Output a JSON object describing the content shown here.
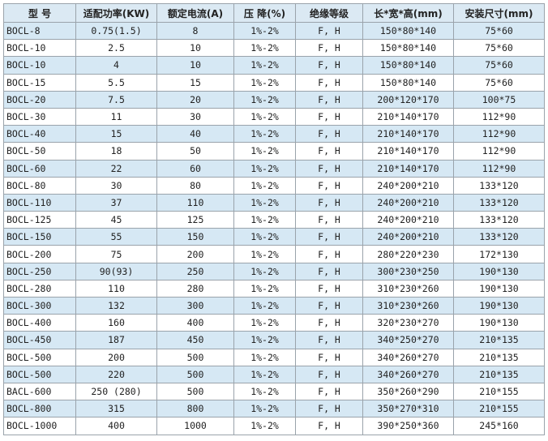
{
  "table": {
    "header": [
      "型 号",
      "适配功率(KW)",
      "额定电流(A)",
      "压 降(%)",
      "绝缘等级",
      "长*宽*高(mm)",
      "安装尺寸(mm)"
    ],
    "rows": [
      [
        "BOCL-8",
        "0.75(1.5)",
        "8",
        "1%-2%",
        "F, H",
        "150*80*140",
        "75*60"
      ],
      [
        "BOCL-10",
        "2.5",
        "10",
        "1%-2%",
        "F, H",
        "150*80*140",
        "75*60"
      ],
      [
        "BOCL-10",
        "4",
        "10",
        "1%-2%",
        "F, H",
        "150*80*140",
        "75*60"
      ],
      [
        "BOCL-15",
        "5.5",
        "15",
        "1%-2%",
        "F, H",
        "150*80*140",
        "75*60"
      ],
      [
        "BOCL-20",
        "7.5",
        "20",
        "1%-2%",
        "F, H",
        "200*120*170",
        "100*75"
      ],
      [
        "BOCL-30",
        "11",
        "30",
        "1%-2%",
        "F, H",
        "210*140*170",
        "112*90"
      ],
      [
        "BOCL-40",
        "15",
        "40",
        "1%-2%",
        "F, H",
        "210*140*170",
        "112*90"
      ],
      [
        "BOCL-50",
        "18",
        "50",
        "1%-2%",
        "F, H",
        "210*140*170",
        "112*90"
      ],
      [
        "BOCL-60",
        "22",
        "60",
        "1%-2%",
        "F, H",
        "210*140*170",
        "112*90"
      ],
      [
        "BOCL-80",
        "30",
        "80",
        "1%-2%",
        "F, H",
        "240*200*210",
        "133*120"
      ],
      [
        "BOCL-110",
        "37",
        "110",
        "1%-2%",
        "F, H",
        "240*200*210",
        "133*120"
      ],
      [
        "BOCL-125",
        "45",
        "125",
        "1%-2%",
        "F, H",
        "240*200*210",
        "133*120"
      ],
      [
        "BOCL-150",
        "55",
        "150",
        "1%-2%",
        "F, H",
        "240*200*210",
        "133*120"
      ],
      [
        "BOCL-200",
        "75",
        "200",
        "1%-2%",
        "F, H",
        "280*220*230",
        "172*130"
      ],
      [
        "BOCL-250",
        "90(93)",
        "250",
        "1%-2%",
        "F, H",
        "300*230*250",
        "190*130"
      ],
      [
        "BOCL-280",
        "110",
        "280",
        "1%-2%",
        "F, H",
        "310*230*260",
        "190*130"
      ],
      [
        "BOCL-300",
        "132",
        "300",
        "1%-2%",
        "F, H",
        "310*230*260",
        "190*130"
      ],
      [
        "BOCL-400",
        "160",
        "400",
        "1%-2%",
        "F, H",
        "320*230*270",
        "190*130"
      ],
      [
        "BOCL-450",
        "187",
        "450",
        "1%-2%",
        "F, H",
        "340*250*270",
        "210*135"
      ],
      [
        "BOCL-500",
        "200",
        "500",
        "1%-2%",
        "F, H",
        "340*260*270",
        "210*135"
      ],
      [
        "BOCL-500",
        "220",
        "500",
        "1%-2%",
        "F, H",
        "340*260*270",
        "210*135"
      ],
      [
        "BACL-600",
        "250 (280)",
        "500",
        "1%-2%",
        "F, H",
        "350*260*290",
        "210*155"
      ],
      [
        "BOCL-800",
        "315",
        "800",
        "1%-2%",
        "F, H",
        "350*270*310",
        "210*155"
      ],
      [
        "BOCL-1000",
        "400",
        "1000",
        "1%-2%",
        "F, H",
        "390*250*360",
        "245*160"
      ]
    ]
  }
}
